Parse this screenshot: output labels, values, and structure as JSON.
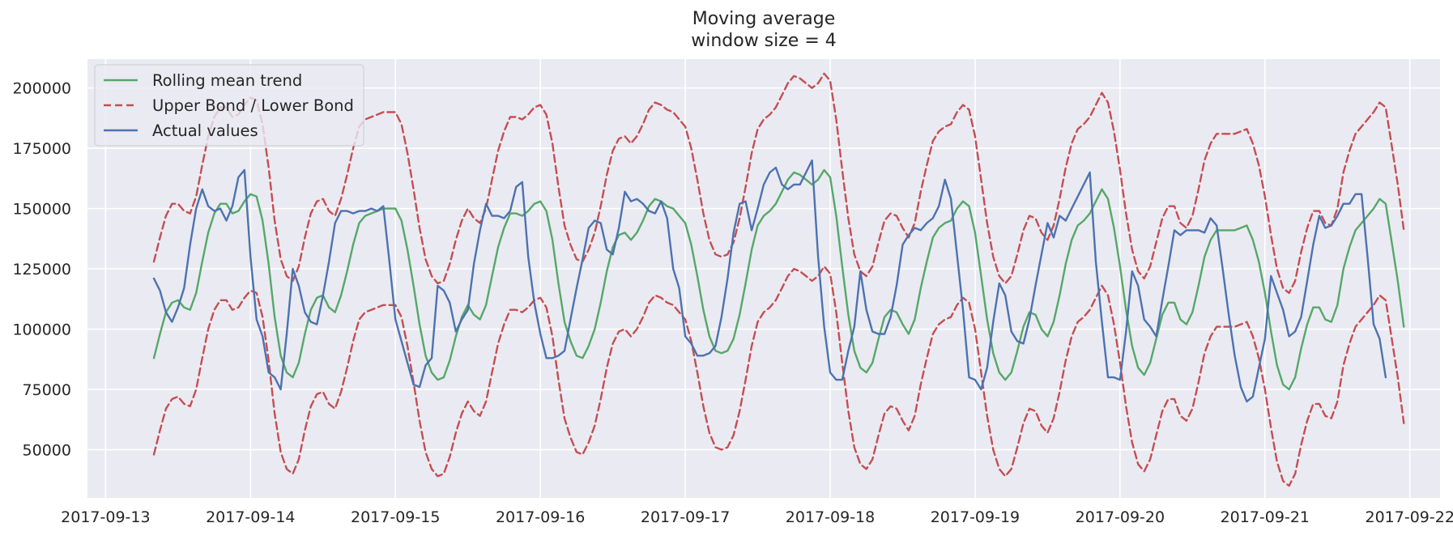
{
  "chart_data": {
    "type": "line",
    "title": "Moving average",
    "subtitle": "window size = 4",
    "xlabel": "",
    "ylabel": "",
    "x_start": "2017-09-13T08:00",
    "x_step_hours": 1,
    "x_tick_labels": [
      "2017-09-13",
      "2017-09-14",
      "2017-09-15",
      "2017-09-16",
      "2017-09-17",
      "2017-09-18",
      "2017-09-19",
      "2017-09-20",
      "2017-09-21",
      "2017-09-22"
    ],
    "y_ticks": [
      50000,
      75000,
      100000,
      125000,
      150000,
      175000,
      200000
    ],
    "y_tick_labels": [
      "50000",
      "75000",
      "100000",
      "125000",
      "150000",
      "175000",
      "200000"
    ],
    "xlim": [
      "2017-09-12T21:00",
      "2017-09-22T05:00"
    ],
    "ylim": [
      30000,
      212000
    ],
    "grid": true,
    "legend_position": "top-left",
    "colors": {
      "background": "#eaeaf2",
      "grid": "#ffffff",
      "rolling": "#55a868",
      "bonds": "#c44e52",
      "actual": "#4c72b0"
    },
    "series": [
      {
        "name": "Rolling mean trend",
        "style": "solid",
        "color": "#55a868",
        "values": [
          88000,
          98000,
          107000,
          111000,
          112000,
          109000,
          108000,
          115000,
          128000,
          140000,
          148000,
          152000,
          152000,
          148000,
          149000,
          153000,
          156000,
          155000,
          145000,
          127000,
          105000,
          89000,
          82000,
          80000,
          86000,
          98000,
          108000,
          113000,
          114000,
          109000,
          107000,
          114000,
          124000,
          135000,
          144000,
          147000,
          148000,
          149000,
          150000,
          150000,
          150000,
          145000,
          133000,
          118000,
          102000,
          89000,
          82000,
          79000,
          80000,
          87000,
          97000,
          105000,
          110000,
          106000,
          104000,
          110000,
          122000,
          134000,
          142000,
          148000,
          148000,
          147000,
          149000,
          152000,
          153000,
          149000,
          137000,
          119000,
          103000,
          95000,
          89000,
          88000,
          93000,
          100000,
          111000,
          124000,
          134000,
          139000,
          140000,
          137000,
          140000,
          145000,
          151000,
          154000,
          153000,
          151000,
          150000,
          147000,
          144000,
          135000,
          122000,
          108000,
          97000,
          91000,
          90000,
          91000,
          96000,
          106000,
          119000,
          133000,
          143000,
          147000,
          149000,
          152000,
          157000,
          162000,
          165000,
          164000,
          162000,
          160000,
          162000,
          166000,
          163000,
          147000,
          126000,
          106000,
          91000,
          84000,
          82000,
          86000,
          96000,
          105000,
          108000,
          107000,
          102000,
          98000,
          104000,
          117000,
          128000,
          138000,
          142000,
          144000,
          145000,
          150000,
          153000,
          151000,
          140000,
          122000,
          104000,
          90000,
          82000,
          79000,
          82000,
          91000,
          101000,
          107000,
          106000,
          100000,
          97000,
          103000,
          114000,
          127000,
          137000,
          143000,
          145000,
          148000,
          153000,
          158000,
          154000,
          142000,
          126000,
          108000,
          93000,
          84000,
          81000,
          86000,
          96000,
          106000,
          111000,
          111000,
          104000,
          102000,
          107000,
          118000,
          130000,
          137000,
          141000,
          141000,
          141000,
          141000,
          142000,
          143000,
          137000,
          128000,
          115000,
          99000,
          85000,
          77000,
          75000,
          80000,
          92000,
          102000,
          109000,
          109000,
          104000,
          103000,
          110000,
          125000,
          134000,
          141000,
          144000,
          147000,
          150000,
          154000,
          152000,
          136000,
          120000,
          101000
        ]
      },
      {
        "name": "Upper Bond / Lower Bond",
        "style": "dashed",
        "color": "#c44e52",
        "values": [
          128000,
          138000,
          147000,
          152000,
          152000,
          149000,
          148000,
          155000,
          168000,
          180000,
          188000,
          192000,
          192000,
          188000,
          189000,
          193000,
          196000,
          195000,
          185000,
          167000,
          145000,
          129000,
          122000,
          120000,
          126000,
          138000,
          148000,
          153000,
          154000,
          149000,
          147000,
          154000,
          164000,
          175000,
          184000,
          187000,
          188000,
          189000,
          190000,
          190000,
          190000,
          185000,
          173000,
          158000,
          142000,
          129000,
          122000,
          119000,
          120000,
          127000,
          137000,
          145000,
          150000,
          146000,
          144000,
          150000,
          162000,
          174000,
          182000,
          188000,
          188000,
          187000,
          189000,
          192000,
          193000,
          189000,
          177000,
          159000,
          143000,
          135000,
          129000,
          128000,
          133000,
          140000,
          151000,
          164000,
          174000,
          179000,
          180000,
          177000,
          180000,
          185000,
          191000,
          194000,
          193000,
          191000,
          190000,
          187000,
          184000,
          175000,
          162000,
          148000,
          137000,
          131000,
          130000,
          131000,
          136000,
          146000,
          159000,
          173000,
          183000,
          187000,
          189000,
          192000,
          197000,
          202000,
          205000,
          204000,
          202000,
          200000,
          202000,
          206000,
          203000,
          187000,
          166000,
          146000,
          131000,
          124000,
          122000,
          126000,
          136000,
          145000,
          148000,
          147000,
          142000,
          138000,
          144000,
          157000,
          168000,
          178000,
          182000,
          184000,
          185000,
          190000,
          193000,
          191000,
          180000,
          162000,
          144000,
          130000,
          122000,
          119000,
          122000,
          131000,
          141000,
          147000,
          146000,
          140000,
          137000,
          143000,
          154000,
          167000,
          177000,
          183000,
          185000,
          188000,
          193000,
          198000,
          194000,
          182000,
          166000,
          148000,
          133000,
          124000,
          121000,
          126000,
          136000,
          146000,
          151000,
          151000,
          144000,
          142000,
          147000,
          158000,
          170000,
          177000,
          181000,
          181000,
          181000,
          181000,
          182000,
          183000,
          177000,
          168000,
          155000,
          139000,
          125000,
          117000,
          115000,
          120000,
          132000,
          142000,
          149000,
          149000,
          144000,
          143000,
          150000,
          165000,
          174000,
          181000,
          184000,
          187000,
          190000,
          194000,
          192000,
          176000,
          160000,
          141000
        ]
      },
      {
        "name": "",
        "style": "dashed",
        "color": "#c44e52",
        "values": [
          48000,
          58000,
          67000,
          71000,
          72000,
          69000,
          68000,
          75000,
          88000,
          100000,
          108000,
          112000,
          112000,
          108000,
          109000,
          113000,
          116000,
          115000,
          105000,
          87000,
          65000,
          49000,
          42000,
          40000,
          46000,
          58000,
          68000,
          73000,
          74000,
          69000,
          67000,
          74000,
          84000,
          95000,
          104000,
          107000,
          108000,
          109000,
          110000,
          110000,
          110000,
          105000,
          93000,
          78000,
          62000,
          49000,
          42000,
          39000,
          40000,
          47000,
          57000,
          65000,
          70000,
          66000,
          64000,
          70000,
          82000,
          94000,
          102000,
          108000,
          108000,
          107000,
          109000,
          112000,
          113000,
          109000,
          97000,
          79000,
          63000,
          55000,
          49000,
          48000,
          53000,
          60000,
          71000,
          84000,
          94000,
          99000,
          100000,
          97000,
          100000,
          105000,
          111000,
          114000,
          113000,
          111000,
          110000,
          107000,
          104000,
          95000,
          82000,
          68000,
          57000,
          51000,
          50000,
          51000,
          56000,
          66000,
          79000,
          93000,
          103000,
          107000,
          109000,
          112000,
          117000,
          122000,
          125000,
          124000,
          122000,
          120000,
          122000,
          126000,
          123000,
          107000,
          86000,
          66000,
          51000,
          44000,
          42000,
          46000,
          56000,
          65000,
          68000,
          67000,
          62000,
          58000,
          64000,
          77000,
          88000,
          98000,
          102000,
          104000,
          105000,
          110000,
          113000,
          111000,
          100000,
          82000,
          64000,
          50000,
          42000,
          39000,
          42000,
          51000,
          61000,
          67000,
          66000,
          60000,
          57000,
          63000,
          74000,
          87000,
          97000,
          103000,
          105000,
          108000,
          113000,
          118000,
          114000,
          102000,
          86000,
          68000,
          53000,
          44000,
          41000,
          46000,
          56000,
          66000,
          71000,
          71000,
          64000,
          62000,
          67000,
          78000,
          90000,
          97000,
          101000,
          101000,
          101000,
          101000,
          102000,
          103000,
          97000,
          88000,
          75000,
          59000,
          45000,
          37000,
          35000,
          40000,
          52000,
          62000,
          69000,
          69000,
          64000,
          63000,
          70000,
          85000,
          94000,
          101000,
          104000,
          107000,
          110000,
          114000,
          112000,
          96000,
          80000,
          61000
        ]
      },
      {
        "name": "Actual values",
        "style": "solid",
        "color": "#4c72b0",
        "values": [
          121000,
          116000,
          107000,
          103000,
          109000,
          117000,
          135000,
          150000,
          158000,
          151000,
          149000,
          150000,
          145000,
          151000,
          163000,
          166000,
          130000,
          104000,
          97000,
          82000,
          80000,
          75000,
          98000,
          125000,
          118000,
          107000,
          103000,
          102000,
          114000,
          128000,
          144000,
          149000,
          149000,
          148000,
          149000,
          149000,
          150000,
          149000,
          151000,
          128000,
          104000,
          95000,
          86000,
          77000,
          76000,
          85000,
          88000,
          118000,
          116000,
          111000,
          99000,
          104000,
          108000,
          127000,
          141000,
          152000,
          147000,
          147000,
          146000,
          149000,
          159000,
          161000,
          130000,
          111000,
          98000,
          88000,
          88000,
          89000,
          91000,
          104000,
          117000,
          129000,
          142000,
          145000,
          144000,
          133000,
          131000,
          142000,
          157000,
          153000,
          154000,
          152000,
          149000,
          148000,
          153000,
          146000,
          125000,
          117000,
          97000,
          94000,
          89000,
          89000,
          90000,
          93000,
          105000,
          121000,
          140000,
          152000,
          153000,
          141000,
          150000,
          160000,
          165000,
          167000,
          160000,
          158000,
          160000,
          160000,
          165000,
          170000,
          130000,
          101000,
          82000,
          79000,
          79000,
          91000,
          101000,
          124000,
          108000,
          99000,
          98000,
          98000,
          105000,
          118000,
          135000,
          139000,
          142000,
          141000,
          144000,
          146000,
          151000,
          162000,
          154000,
          131000,
          108000,
          80000,
          79000,
          75000,
          84000,
          103000,
          119000,
          114000,
          99000,
          95000,
          94000,
          104000,
          118000,
          131000,
          144000,
          138000,
          147000,
          145000,
          150000,
          155000,
          160000,
          165000,
          128000,
          103000,
          80000,
          80000,
          79000,
          99000,
          124000,
          118000,
          104000,
          101000,
          97000,
          112000,
          126000,
          141000,
          139000,
          141000,
          141000,
          141000,
          140000,
          146000,
          143000,
          125000,
          106000,
          89000,
          76000,
          70000,
          72000,
          84000,
          96000,
          122000,
          115000,
          108000,
          97000,
          99000,
          105000,
          120000,
          135000,
          147000,
          142000,
          143000,
          147000,
          152000,
          152000,
          156000,
          156000,
          130000,
          102000,
          96000,
          80000
        ]
      }
    ]
  },
  "legend": [
    {
      "label": "Rolling mean trend",
      "color": "#55a868",
      "style": "solid"
    },
    {
      "label": "Upper Bond / Lower Bond",
      "color": "#c44e52",
      "style": "dashed"
    },
    {
      "label": "Actual values",
      "color": "#4c72b0",
      "style": "solid"
    }
  ]
}
